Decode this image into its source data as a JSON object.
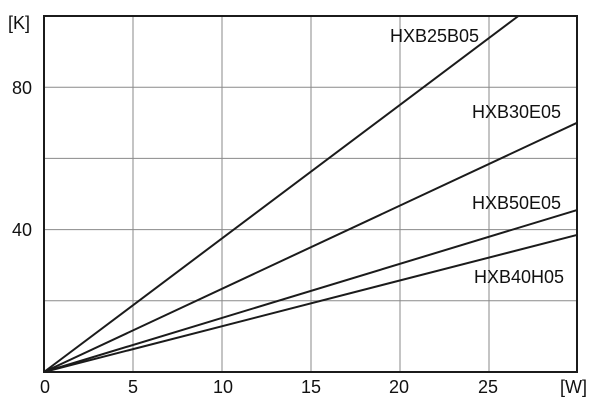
{
  "chart_data": {
    "type": "line",
    "title": "",
    "xlabel": "[W]",
    "ylabel": "[K]",
    "xlim": [
      0,
      30
    ],
    "ylim": [
      0,
      100
    ],
    "x_ticks": [
      0,
      5,
      10,
      15,
      20,
      25
    ],
    "y_ticks": [
      40,
      80
    ],
    "grid": true,
    "series": [
      {
        "name": "HXB25B05",
        "points": [
          [
            0,
            0
          ],
          [
            26.7,
            100
          ]
        ]
      },
      {
        "name": "HXB30E05",
        "points": [
          [
            0,
            0
          ],
          [
            30,
            70
          ]
        ]
      },
      {
        "name": "HXB50E05",
        "points": [
          [
            0,
            0
          ],
          [
            30,
            45.5
          ]
        ]
      },
      {
        "name": "HXB40H05",
        "points": [
          [
            0,
            0
          ],
          [
            30,
            38.5
          ]
        ]
      }
    ]
  }
}
